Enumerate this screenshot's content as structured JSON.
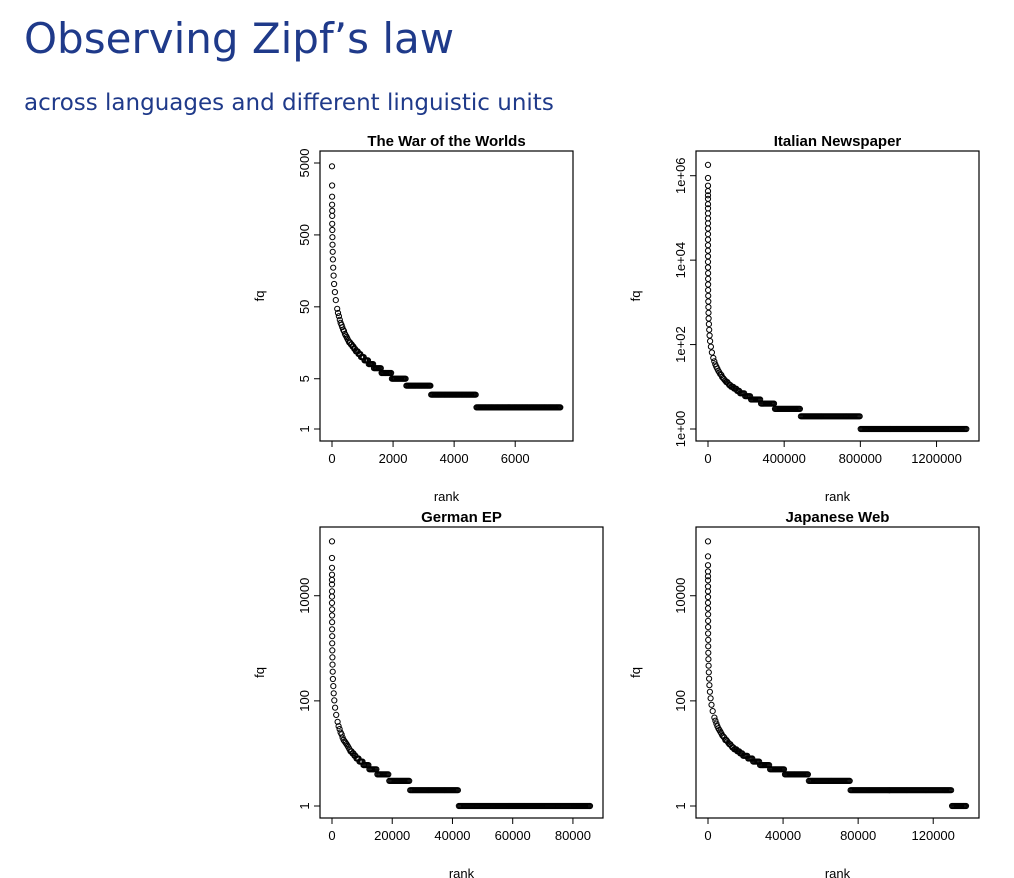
{
  "slide": {
    "title": "Observing Zipf’s law",
    "subtitle": "across languages and different linguistic units"
  },
  "chart_data": [
    {
      "type": "scatter",
      "title": "The War of the Worlds",
      "xlabel": "rank",
      "ylabel": "fq",
      "log_y": true,
      "xlim": [
        0,
        7500
      ],
      "ylim": [
        1,
        5000
      ],
      "xticks": [
        0,
        2000,
        4000,
        6000
      ],
      "xticklabels": [
        "0",
        "2000",
        "4000",
        "6000"
      ],
      "yticks": [
        1,
        5,
        50,
        500,
        5000
      ],
      "yticklabels": [
        "1",
        "5",
        "50",
        "500",
        "5000"
      ],
      "zipf_exponent": 0.94,
      "point_color": "#000000",
      "marker": "open-circle"
    },
    {
      "type": "scatter",
      "title": "Italian Newspaper",
      "xlabel": "rank",
      "ylabel": "fq",
      "log_y": true,
      "xlim": [
        0,
        1360000
      ],
      "ylim": [
        1,
        2000000
      ],
      "xticks": [
        0,
        400000,
        800000,
        1200000
      ],
      "xticklabels": [
        "0",
        "400000",
        "800000",
        "1200000"
      ],
      "yticks": [
        1,
        100,
        10000,
        1000000
      ],
      "yticklabels": [
        "1e+00",
        "1e+02",
        "1e+04",
        "1e+06"
      ],
      "zipf_exponent": 1.01,
      "point_color": "#000000",
      "marker": "open-circle"
    },
    {
      "type": "scatter",
      "title": "German EP",
      "xlabel": "rank",
      "ylabel": "fq",
      "log_y": true,
      "xlim": [
        0,
        86000
      ],
      "ylim": [
        1,
        120000
      ],
      "xticks": [
        0,
        20000,
        40000,
        60000,
        80000
      ],
      "xticklabels": [
        "0",
        "20000",
        "40000",
        "60000",
        "80000"
      ],
      "yticks": [
        1,
        100,
        10000
      ],
      "yticklabels": [
        "1",
        "100",
        "10000"
      ],
      "zipf_exponent": 1.03,
      "point_color": "#000000",
      "marker": "open-circle"
    },
    {
      "type": "scatter",
      "title": "Japanese Web",
      "xlabel": "rank",
      "ylabel": "fq",
      "log_y": true,
      "xlim": [
        0,
        138000
      ],
      "ylim": [
        1,
        120000
      ],
      "xticks": [
        0,
        40000,
        80000,
        120000
      ],
      "xticklabels": [
        "0",
        "40000",
        "80000",
        "120000"
      ],
      "yticks": [
        1,
        100,
        10000
      ],
      "yticklabels": [
        "1",
        "100",
        "10000"
      ],
      "zipf_exponent": 0.97,
      "point_color": "#000000",
      "marker": "open-circle"
    }
  ]
}
